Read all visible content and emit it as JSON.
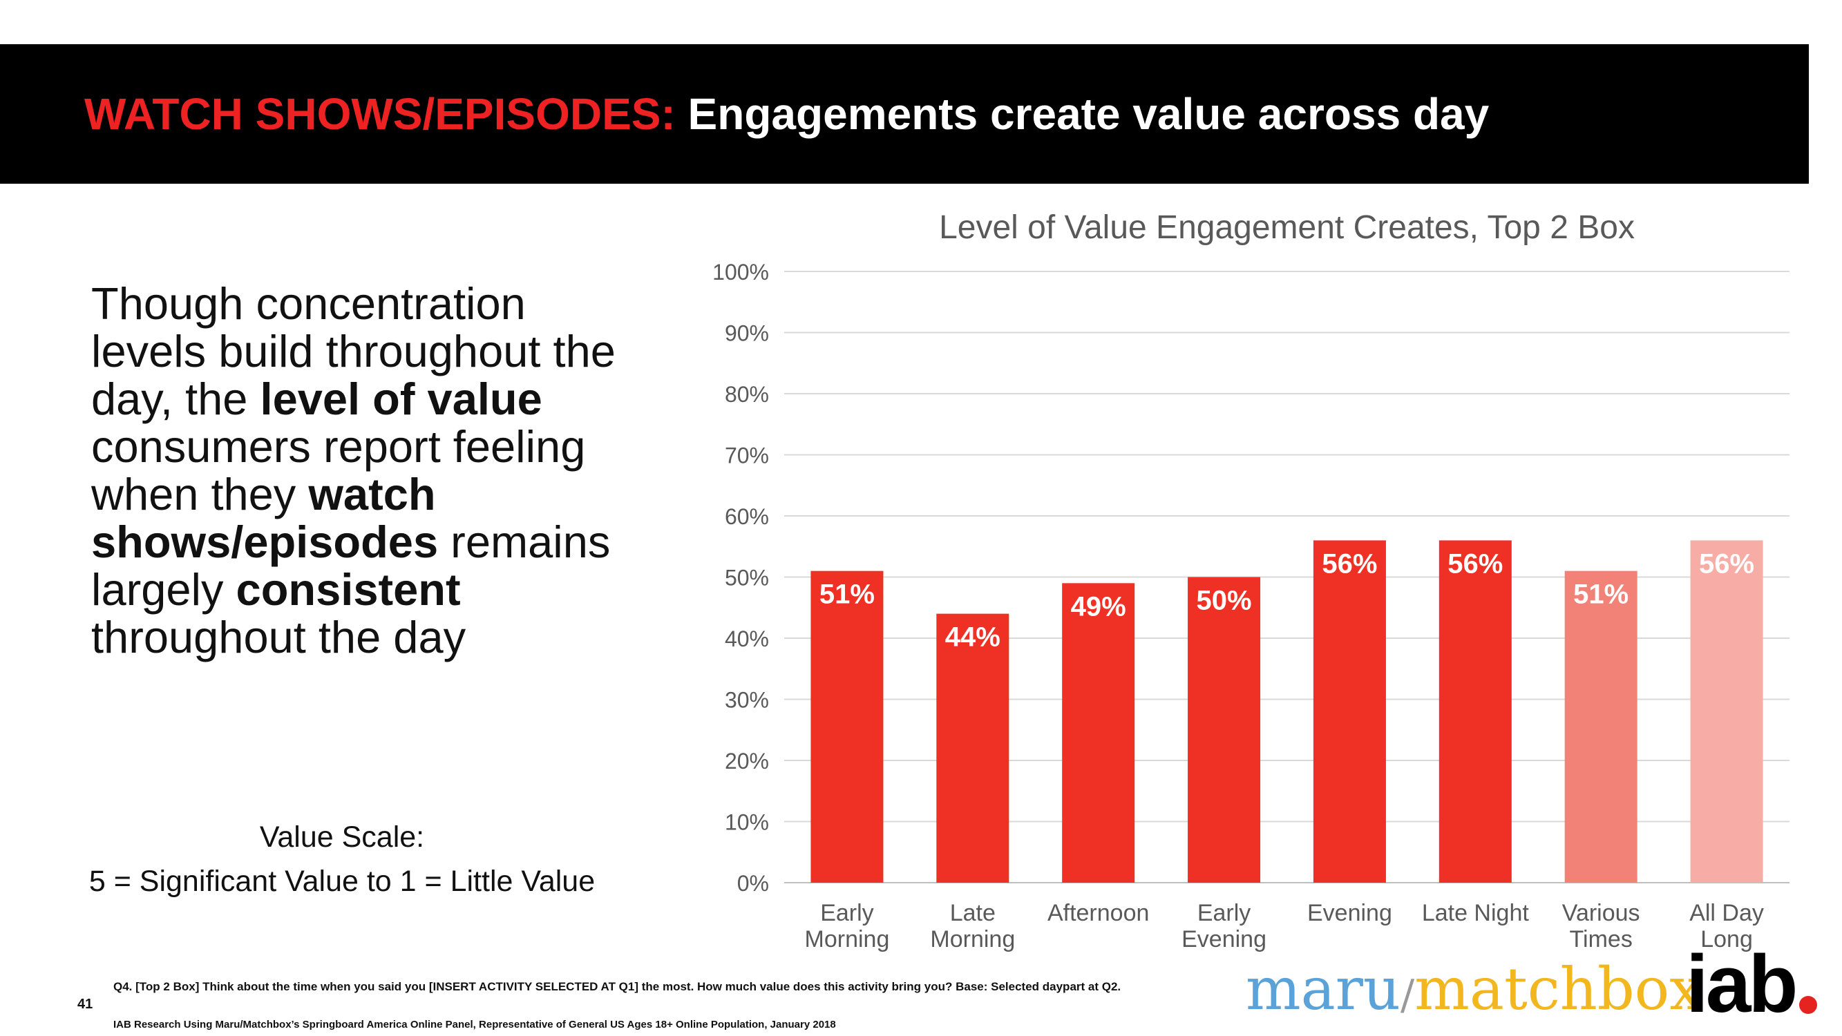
{
  "header": {
    "title_highlight": "WATCH SHOWS/EPISODES:",
    "title_rest": "Engagements create value across day"
  },
  "body": {
    "p1": "Though concentration levels build throughout the day, the ",
    "b1": "level of value",
    "p2": " consumers report feeling when they ",
    "b2": "watch shows/episodes",
    "p3": " remains largely ",
    "b3": "consistent",
    "p4": " throughout the day"
  },
  "scale": {
    "line1": "Value Scale:",
    "line2": "5 = Significant Value to 1 = Little Value"
  },
  "chart_data": {
    "type": "bar",
    "title": "Level of Value Engagement Creates, Top 2 Box",
    "categories": [
      [
        "Early",
        "Morning"
      ],
      [
        "Late",
        "Morning"
      ],
      [
        "Afternoon"
      ],
      [
        "Early",
        "Evening"
      ],
      [
        "Evening"
      ],
      [
        "Late Night"
      ],
      [
        "Various",
        "Times"
      ],
      [
        "All Day",
        "Long"
      ]
    ],
    "values": [
      51,
      44,
      49,
      50,
      56,
      56,
      51,
      56
    ],
    "data_labels": [
      "51%",
      "44%",
      "49%",
      "50%",
      "56%",
      "56%",
      "51%",
      "56%"
    ],
    "bar_colors": [
      "#ee3124",
      "#ee3124",
      "#ee3124",
      "#ee3124",
      "#ee3124",
      "#ee3124",
      "#f28178",
      "#f7aca6"
    ],
    "ylim": [
      0,
      100
    ],
    "yticks": [
      "0%",
      "10%",
      "20%",
      "30%",
      "40%",
      "50%",
      "60%",
      "70%",
      "80%",
      "90%",
      "100%"
    ],
    "grid": true,
    "xlabel": "",
    "ylabel": ""
  },
  "footer": {
    "page_number": "41",
    "question": "Q4. [Top 2 Box] Think about the time when you said you [INSERT ACTIVITY SELECTED AT Q1] the most.  How much value does this activity bring you? Base: Selected daypart at Q2.",
    "source": "IAB Research Using Maru/Matchbox’s Springboard America Online Panel, Representative of General US Ages 18+ Online Population, January 2018",
    "logo_maru": "maru",
    "logo_slash": "/",
    "logo_matchbox": "matchbox",
    "logo_iab": "iab"
  }
}
